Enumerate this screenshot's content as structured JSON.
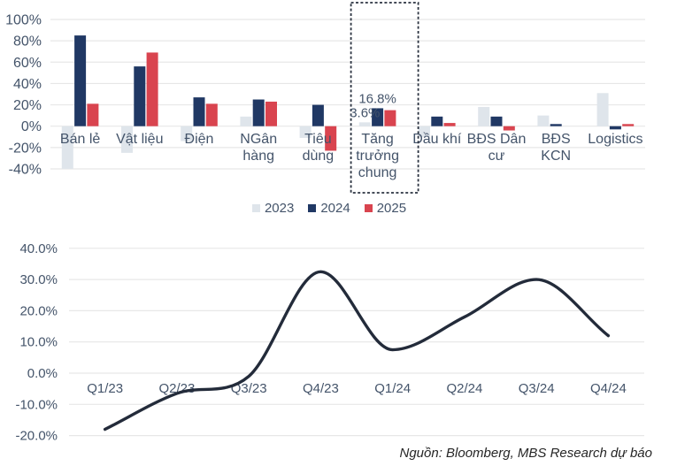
{
  "source_note": "Nguồn: Bloomberg, MBS Research dự báo",
  "colors": {
    "grid": "#E7E7E7",
    "axis_text": "#44546A",
    "highlight_box": "#2B3340",
    "source_text": "#262626"
  },
  "chart_data": [
    {
      "type": "bar",
      "title": "",
      "categories": [
        "Bán lẻ",
        "Vật liệu",
        "Điện",
        "NGân hàng",
        "Tiêu dùng",
        "Tăng trưởng chung",
        "Dầu khí",
        "BĐS Dân cư",
        "BĐS KCN",
        "Logistics"
      ],
      "category_lines": [
        [
          "Bán lẻ"
        ],
        [
          "Vật liệu"
        ],
        [
          "Điện"
        ],
        [
          "NGân",
          "hàng"
        ],
        [
          "Tiêu",
          "dùng"
        ],
        [
          "Tăng",
          "trưởng",
          "chung"
        ],
        [
          "Dầu khí"
        ],
        [
          "BĐS Dân",
          "cư"
        ],
        [
          "BĐS",
          "KCN"
        ],
        [
          "Logistics"
        ]
      ],
      "series": [
        {
          "name": "2023",
          "color": "#DFE5EB",
          "values": [
            -40,
            -25,
            -14,
            9,
            -11,
            3.6,
            -10,
            18,
            10,
            31
          ]
        },
        {
          "name": "2024",
          "color": "#203864",
          "values": [
            85,
            56,
            27,
            25,
            20,
            16.8,
            9,
            9,
            2,
            -3
          ]
        },
        {
          "name": "2025",
          "color": "#D9444F",
          "values": [
            21,
            69,
            21,
            23,
            -23,
            15,
            3,
            -4,
            0,
            2
          ]
        }
      ],
      "ylim": [
        -40,
        100
      ],
      "ytick_step": 20,
      "ytick_labels": [
        "-40%",
        "-20%",
        "0%",
        "20%",
        "40%",
        "60%",
        "80%",
        "100%"
      ],
      "grid": true,
      "legend_position": "bottom",
      "highlight": {
        "category": "Tăng trưởng chung",
        "style": "dashed-box"
      },
      "annotations": [
        {
          "text": "16.8%",
          "category": "Tăng trưởng chung",
          "series": "2024"
        },
        {
          "text": "3.6%",
          "category": "Tăng trưởng chung",
          "series": "2023"
        }
      ]
    },
    {
      "type": "line",
      "title": "",
      "x": [
        "Q1/23",
        "Q2/23",
        "Q3/23",
        "Q4/23",
        "Q1/24",
        "Q2/24",
        "Q3/24",
        "Q4/24"
      ],
      "values": [
        -18,
        -6.5,
        -1,
        32.5,
        7.5,
        18,
        30,
        12
      ],
      "line_color": "#232B3A",
      "smooth": true,
      "ylim": [
        -20,
        40
      ],
      "ytick_step": 10,
      "ytick_labels": [
        "-20.0%",
        "-10.0%",
        "0.0%",
        "10.0%",
        "20.0%",
        "30.0%",
        "40.0%"
      ],
      "grid": true,
      "legend_position": "none"
    }
  ]
}
